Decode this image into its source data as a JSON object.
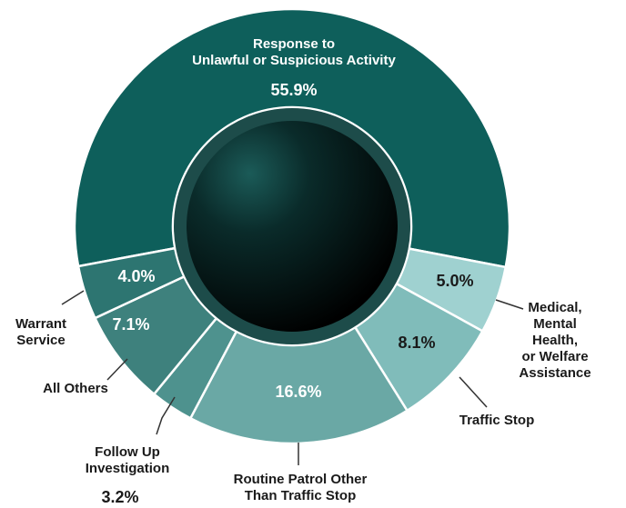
{
  "chart_data": {
    "type": "donut",
    "categories": [
      "Response to\nUnlawful or Suspicious Activity",
      "Medical,\nMental Health,\nor Welfare\nAssistance",
      "Traffic Stop",
      "Routine Patrol Other\nThan Traffic Stop",
      "Follow Up\nInvestigation",
      "All Others",
      "Warrant\nService"
    ],
    "values": [
      55.9,
      5.0,
      8.1,
      16.6,
      3.2,
      7.1,
      4.0
    ],
    "value_labels": [
      "55.9%",
      "5.0%",
      "8.1%",
      "16.6%",
      "3.2%",
      "7.1%",
      "4.0%"
    ],
    "colors": [
      "#0e5f5b",
      "#9fd1d0",
      "#80bcba",
      "#6aa8a5",
      "#4e928e",
      "#3e817d",
      "#2d7571"
    ]
  }
}
